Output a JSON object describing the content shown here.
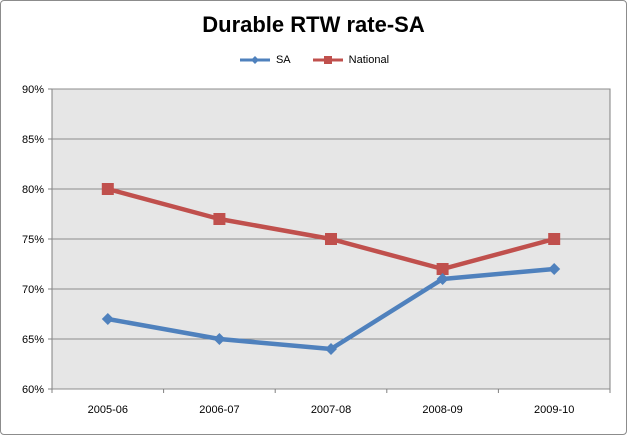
{
  "chart_data": {
    "type": "line",
    "title": "Durable RTW rate-SA",
    "categories": [
      "2005-06",
      "2006-07",
      "2007-08",
      "2008-09",
      "2009-10"
    ],
    "series": [
      {
        "name": "SA",
        "values": [
          67,
          65,
          64,
          71,
          72
        ],
        "color": "#4f81bd",
        "marker": "diamond"
      },
      {
        "name": "National",
        "values": [
          80,
          77,
          75,
          72,
          75
        ],
        "color": "#c0504d",
        "marker": "square"
      }
    ],
    "y_ticks": [
      "60%",
      "65%",
      "70%",
      "75%",
      "80%",
      "85%",
      "90%"
    ],
    "ylim": [
      60,
      90
    ],
    "y_unit": "%",
    "grid": true,
    "legend_position": "top",
    "plot_background": "#e6e6e6"
  }
}
